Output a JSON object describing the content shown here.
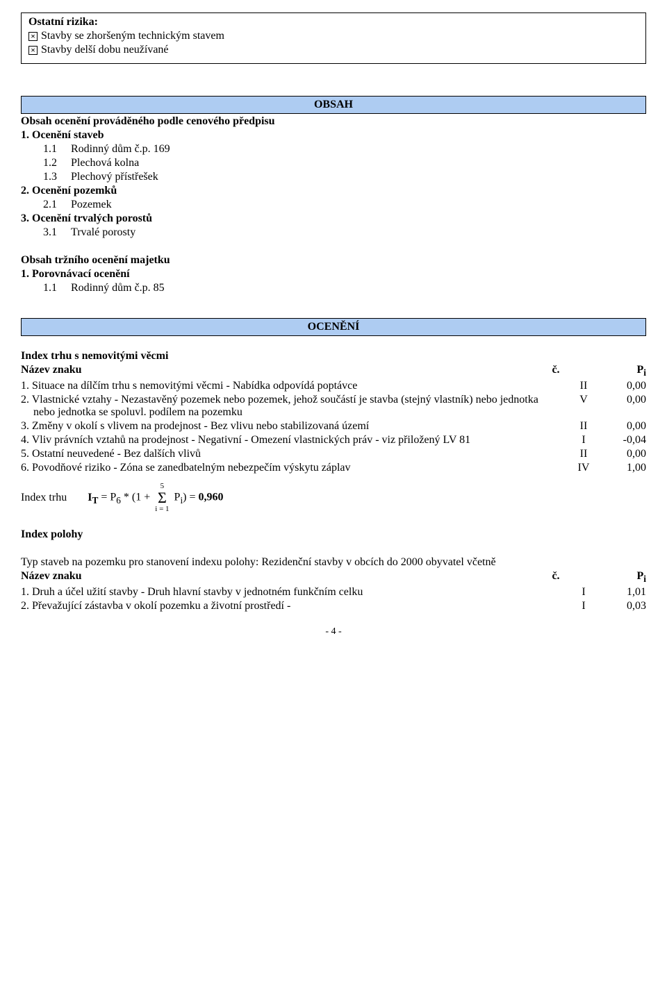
{
  "top_box": {
    "title": "Ostatní rizika:",
    "items": [
      "Stavby se zhoršeným technickým stavem",
      "Stavby delší dobu neužívané"
    ]
  },
  "obsah": {
    "header": "OBSAH",
    "line1_bold": "Obsah ocenění prováděného podle cenového předpisu",
    "sec1": "1. Ocenění staveb",
    "sec1_items": [
      {
        "num": "1.1",
        "label": "Rodinný dům č.p. 169"
      },
      {
        "num": "1.2",
        "label": "Plechová kolna"
      },
      {
        "num": "1.3",
        "label": "Plechový přístřešek"
      }
    ],
    "sec2": "2. Ocenění pozemků",
    "sec2_items": [
      {
        "num": "2.1",
        "label": "Pozemek"
      }
    ],
    "sec3": "3. Ocenění trvalých porostů",
    "sec3_items": [
      {
        "num": "3.1",
        "label": "Trvalé porosty"
      }
    ],
    "line2_bold": "Obsah tržního ocenění majetku",
    "sec4": "1. Porovnávací ocenění",
    "sec4_items": [
      {
        "num": "1.1",
        "label": "Rodinný dům č.p. 85"
      }
    ]
  },
  "oceneni_header": "OCENĚNÍ",
  "index_trhu": {
    "title": "Index trhu s nemovitými věcmi",
    "nazev_znaku": "Název znaku",
    "col_c": "č.",
    "col_p": "Pi",
    "items": [
      {
        "num": "1.",
        "text": "Situace na dílčím trhu s nemovitými věcmi - Nabídka odpovídá poptávce",
        "c": "II",
        "p": "0,00"
      },
      {
        "num": "2.",
        "text": "Vlastnické vztahy - Nezastavěný pozemek nebo pozemek, jehož součástí je stavba (stejný vlastník) nebo jednotka nebo jednotka se spoluvl. podílem na pozemku",
        "c": "V",
        "p": "0,00"
      },
      {
        "num": "3.",
        "text": "Změny v okolí s vlivem na prodejnost - Bez vlivu nebo stabilizovaná území",
        "c": "II",
        "p": "0,00"
      },
      {
        "num": "4.",
        "text": "Vliv právních vztahů na prodejnost - Negativní - Omezení vlastnických práv - viz přiložený LV 81",
        "c": "I",
        "p": "-0,04"
      },
      {
        "num": "5.",
        "text": "Ostatní neuvedené - Bez dalších vlivů",
        "c": "II",
        "p": "0,00"
      },
      {
        "num": "6.",
        "text": "Povodňové riziko - Zóna se zanedbatelným nebezpečím výskytu záplav",
        "c": "IV",
        "p": "1,00"
      }
    ],
    "formula_label": "Index trhu",
    "formula_lhs": "IT = ",
    "formula_p6": "P6 * (1 + ",
    "formula_pi": " Pi) = ",
    "formula_result": "0,960",
    "sigma_top": "5",
    "sigma_bot": "i = 1"
  },
  "index_polohy": {
    "title": "Index polohy",
    "intro": "Typ staveb na pozemku pro stanovení indexu polohy: Rezidenční stavby v obcích do 2000 obyvatel včetně",
    "nazev_znaku": "Název znaku",
    "col_c": "č.",
    "col_p": "Pi",
    "items": [
      {
        "num": "1.",
        "text": "Druh a účel užití stavby - Druh hlavní stavby v jednotném funkčním celku",
        "c": "I",
        "p": "1,01"
      },
      {
        "num": "2.",
        "text": "Převažující zástavba v okolí pozemku a životní prostředí -",
        "c": "I",
        "p": "0,03"
      }
    ]
  },
  "page_num": "- 4 -"
}
